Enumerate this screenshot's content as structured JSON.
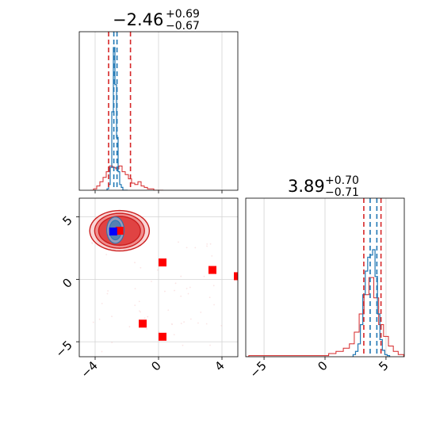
{
  "chart_data": {
    "type": "corner",
    "colors": {
      "red": "#d62728",
      "red_dark": "#cc1f1f",
      "blue": "#1f77b4",
      "marker_red": "#ff0000",
      "marker_blue": "#0000ff",
      "grid": "#d3d3d3"
    },
    "panels": [
      {
        "name": "marginal-x",
        "type": "histogram",
        "title": {
          "value": "−2.46",
          "plus": "+0.69",
          "minus": "−0.67"
        },
        "xlim": [
          -5.0,
          5.0
        ],
        "grid_x": [
          -4,
          0,
          4
        ],
        "xticks_visible": [],
        "red_quantiles": [
          -3.15,
          -2.46,
          -1.77
        ],
        "blue_quantiles": [
          -2.82,
          -2.62
        ],
        "blue_hist": {
          "x": [
            -3.2,
            -3.1,
            -3.0,
            -2.9,
            -2.8,
            -2.7,
            -2.6,
            -2.5,
            -2.4,
            -2.3,
            -2.2,
            -2.1,
            -2.0
          ],
          "y": [
            0.01,
            0.04,
            0.16,
            0.55,
            1.0,
            0.74,
            0.37,
            0.13,
            0.04,
            0.02,
            0.0,
            0.0,
            0.0
          ]
        },
        "red_hist": {
          "x": [
            -4.2,
            -4.0,
            -3.8,
            -3.6,
            -3.4,
            -3.2,
            -3.0,
            -2.8,
            -2.6,
            -2.4,
            -2.2,
            -2.0,
            -1.8,
            -1.6,
            -1.4,
            -1.2,
            -1.0,
            -0.8,
            -0.6,
            -0.4,
            -0.2,
            0.0,
            0.2
          ],
          "y": [
            0.0,
            0.01,
            0.03,
            0.06,
            0.09,
            0.13,
            0.17,
            0.16,
            0.15,
            0.17,
            0.13,
            0.11,
            0.08,
            0.05,
            0.04,
            0.06,
            0.03,
            0.02,
            0.01,
            0.01,
            0.0,
            0.0,
            0.0
          ]
        }
      },
      {
        "name": "marginal-y",
        "type": "histogram",
        "title": {
          "value": "3.89",
          "plus": "+0.70",
          "minus": "−0.71"
        },
        "xlim": [
          -6.5,
          6.5
        ],
        "grid_x": [
          -5,
          0,
          5
        ],
        "xtick_labels": [
          "−5",
          "0",
          "5"
        ],
        "red_quantiles": [
          3.18,
          3.89,
          4.59
        ],
        "blue_quantiles": [
          3.7,
          4.25
        ],
        "blue_hist": {
          "x": [
            2.4,
            2.6,
            2.8,
            3.0,
            3.2,
            3.4,
            3.6,
            3.8,
            4.0,
            4.2,
            4.4,
            4.6,
            4.8,
            5.0,
            5.2
          ],
          "y": [
            0.02,
            0.05,
            0.12,
            0.3,
            0.58,
            0.8,
            0.93,
            0.95,
            1.0,
            0.75,
            0.4,
            0.16,
            0.06,
            0.02,
            0.01
          ]
        },
        "red_hist": {
          "x": [
            -6.5,
            -6.0,
            0.0,
            0.6,
            1.2,
            1.8,
            2.2,
            2.6,
            3.0,
            3.4,
            3.8,
            4.2,
            4.6,
            5.0,
            5.4,
            5.8,
            6.2
          ],
          "y": [
            0.0,
            0.01,
            0.01,
            0.03,
            0.05,
            0.08,
            0.12,
            0.23,
            0.4,
            0.58,
            0.74,
            0.55,
            0.3,
            0.19,
            0.1,
            0.05,
            0.02
          ]
        }
      },
      {
        "name": "joint",
        "type": "scatter-contour",
        "xlim": [
          -5.0,
          5.0
        ],
        "ylim": [
          -6.2,
          6.5
        ],
        "grid_x": [
          -4,
          0,
          4
        ],
        "grid_y": [
          -5,
          0,
          5
        ],
        "xtick_labels": [
          "−4",
          "0",
          "4"
        ],
        "ytick_labels": [
          "−5",
          "0",
          "5"
        ],
        "red_center": [
          -2.46,
          3.89
        ],
        "red_levels": [
          [
            1.88,
            1.62
          ],
          [
            1.57,
            1.4
          ],
          [
            1.32,
            1.16
          ]
        ],
        "blue_center": [
          -2.72,
          3.94
        ],
        "blue_levels": [
          [
            0.55,
            1.06
          ],
          [
            0.38,
            0.78
          ]
        ],
        "red_markers": [
          {
            "x": -2.46,
            "y": 3.89
          },
          {
            "x": 0.25,
            "y": 1.35
          },
          {
            "x": 3.4,
            "y": 0.75
          },
          {
            "x": 5.0,
            "y": 0.25
          },
          {
            "x": -1.0,
            "y": -3.55
          },
          {
            "x": 0.25,
            "y": -4.6
          }
        ],
        "blue_markers": [
          {
            "x": -2.86,
            "y": 3.83
          }
        ]
      }
    ]
  }
}
